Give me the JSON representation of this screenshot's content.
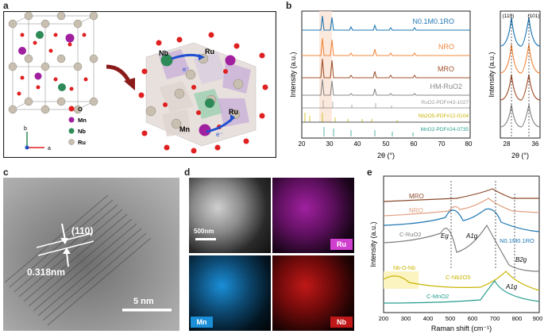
{
  "panels": {
    "a": "a",
    "b": "b",
    "c": "c",
    "d": "d",
    "e": "e"
  },
  "legend_atoms": [
    {
      "label": "O",
      "color": "#e02020"
    },
    {
      "label": "Mn",
      "color": "#a020a0"
    },
    {
      "label": "Nb",
      "color": "#2e8b57"
    },
    {
      "label": "Ru",
      "color": "#c8bfb0"
    }
  ],
  "crystal_labels": {
    "nb": "Nb",
    "ru1": "Ru",
    "ru2": "Ru",
    "mn": "Mn",
    "e1": "e⁻",
    "e2": "e⁻"
  },
  "axes_labels": {
    "b": "b",
    "a": "a"
  },
  "xrd": {
    "ylabel": "Intensity (a.u.)",
    "xlabel": "2θ (°)",
    "xticks": [
      "20",
      "30",
      "40",
      "50",
      "60",
      "70",
      "80"
    ],
    "series": [
      {
        "name": "N0.1M0.1RO",
        "color": "#1f77b4"
      },
      {
        "name": "NRO",
        "color": "#f0883e"
      },
      {
        "name": "MRO",
        "color": "#a0522d"
      },
      {
        "name": "HM-RuO2",
        "color": "#888888"
      }
    ],
    "refs": [
      {
        "name": "RuO2-PDF#43-1027",
        "color": "#999999"
      },
      {
        "name": "Nb2O5-PDF#12-0104",
        "color": "#c8b400"
      },
      {
        "name": "MnO2-PDF#24-0735",
        "color": "#2a9d8f"
      }
    ]
  },
  "xrd_zoom": {
    "ylabel": "Intensity (a.u.)",
    "xlabel": "2θ (°)",
    "xticks": [
      "28",
      "36"
    ],
    "peaks": [
      "(110)",
      "(101)"
    ]
  },
  "tem": {
    "plane": "(110)",
    "spacing": "0.318nm",
    "scale": "5 nm"
  },
  "eds": {
    "scale": "500nm",
    "maps": [
      "Ru",
      "Mn",
      "Nb"
    ],
    "colors": [
      "#d040d0",
      "#1a8fd8",
      "#c01818"
    ]
  },
  "raman": {
    "ylabel": "Intensity (a.u.)",
    "xlabel": "Raman shift (cm⁻¹)",
    "xticks": [
      "200",
      "300",
      "400",
      "500",
      "600",
      "700",
      "800",
      "900"
    ],
    "labels": {
      "mro": "MRO",
      "nro": "NRO",
      "cruo2": "C-RuO2",
      "nmro": "N0.1M0.1RO",
      "nbonb": "Nb-O-Nb",
      "cnb2o5": "C-Nb2O5",
      "cmno2": "C-MnO2",
      "eg": "Eg",
      "a1g": "A1g",
      "b2g": "B2g",
      "a1g2": "A1g"
    }
  },
  "chart_data": [
    {
      "type": "line",
      "title": "",
      "xlabel": "2θ (°)",
      "ylabel": "Intensity (a.u.)",
      "xlim": [
        20,
        80
      ],
      "series": [
        {
          "name": "N0.1M0.1RO",
          "peaks_x": [
            28,
            35,
            40,
            54,
            58,
            67,
            69
          ]
        },
        {
          "name": "NRO",
          "peaks_x": [
            28,
            35,
            40,
            54,
            58,
            67,
            69
          ]
        },
        {
          "name": "MRO",
          "peaks_x": [
            28,
            35,
            40,
            54,
            58,
            67,
            69
          ]
        },
        {
          "name": "HM-RuO2",
          "peaks_x": [
            28,
            35,
            40,
            54,
            58,
            67,
            69
          ]
        }
      ]
    },
    {
      "type": "line",
      "title": "",
      "xlabel": "Raman shift (cm⁻¹)",
      "ylabel": "Intensity (a.u.)",
      "xlim": [
        200,
        900
      ],
      "series": [
        {
          "name": "MRO",
          "peaks_x": [
            630
          ]
        },
        {
          "name": "NRO",
          "peaks_x": [
            520,
            630
          ]
        },
        {
          "name": "N0.1M0.1RO",
          "peaks_x": [
            515,
            625
          ]
        },
        {
          "name": "C-RuO2",
          "peaks_x": [
            520,
            635,
            700
          ]
        },
        {
          "name": "C-Nb2O5",
          "peaks_x": [
            690
          ]
        },
        {
          "name": "C-MnO2",
          "peaks_x": [
            655
          ]
        }
      ]
    }
  ]
}
